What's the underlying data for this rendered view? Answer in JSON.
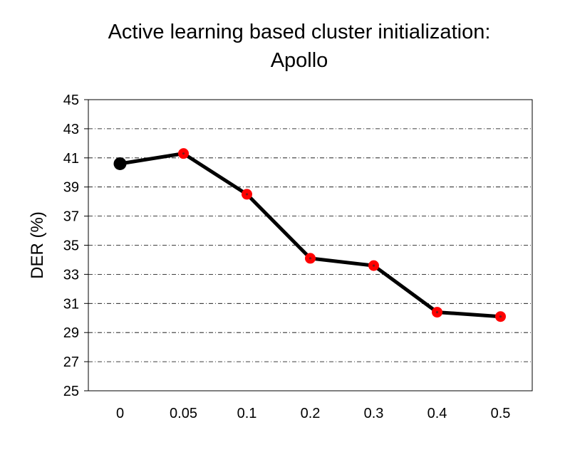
{
  "chart_data": {
    "type": "line",
    "title_lines": [
      "Active learning based cluster initialization:",
      "Apollo"
    ],
    "xlabel": "",
    "ylabel": "DER (%)",
    "categories": [
      "0",
      "0.05",
      "0.1",
      "0.2",
      "0.3",
      "0.4",
      "0.5"
    ],
    "series": [
      {
        "values": [
          40.6,
          41.3,
          38.5,
          34.1,
          33.6,
          30.4,
          30.1
        ]
      }
    ],
    "ylim": [
      25,
      45
    ],
    "yticks": [
      "25",
      "27",
      "29",
      "31",
      "33",
      "35",
      "37",
      "39",
      "41",
      "43",
      "45"
    ],
    "grid": true,
    "colors": {
      "line": "#000000",
      "marker_fill": "#ff0000",
      "first_marker": "#000000",
      "grid": "#000000"
    }
  }
}
